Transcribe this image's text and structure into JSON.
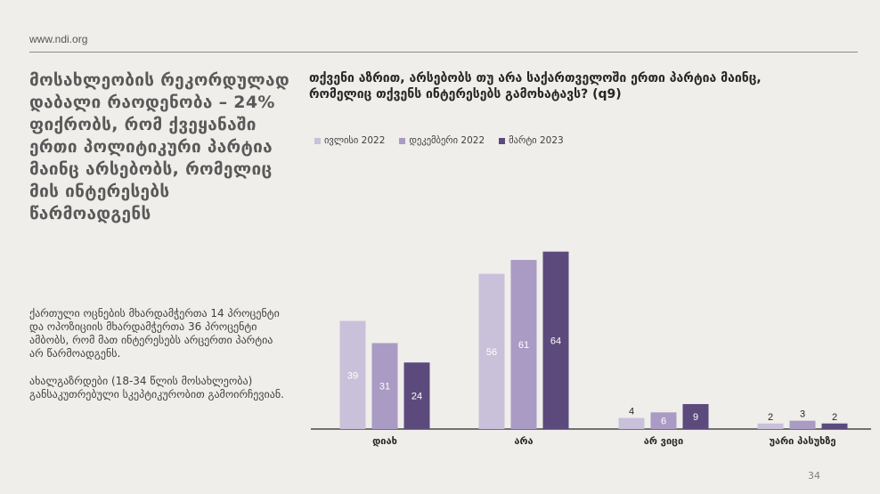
{
  "site": "www.ndi.org",
  "headline": "მოსახლეობის რეკორდულად დაბალი რაოდენობა – 24% ფიქრობს, რომ ქვეყანაში ერთი პოლიტიკური პარტია მაინც არსებობს, რომელიც მის ინტერესებს წარმოადგენს",
  "paragraphs": [
    "ქართული ოცნების მხარდამჭერთა 14 პროცენტი და ოპოზიციის მხარდამჭერთა 36 პროცენტი ამბობს, რომ მათ ინტერესებს არცერთი პარტია არ წარმოადგენს.",
    "ახალგაზრდები (18-34 წლის მოსახლეობა) განსაკუთრებული სკეპტიკურობით გამოირჩევიან."
  ],
  "page_number": "34",
  "chart_data": {
    "type": "bar",
    "title": "თქვენი აზრით, არსებობს თუ არა საქართველოში ერთი პარტია მაინც, რომელიც თქვენს ინტერესებს გამოხატავს? (q9)",
    "categories": [
      "დიახ",
      "არა",
      "არ ვიცი",
      "უარი პასუხზე"
    ],
    "series": [
      {
        "name": "ივლისი 2022",
        "values": [
          39,
          56,
          4,
          2
        ],
        "color": "#c9c1d9"
      },
      {
        "name": "დეკემბერი 2022",
        "values": [
          31,
          61,
          6,
          3
        ],
        "color": "#a99bc4"
      },
      {
        "name": "მარტი 2023",
        "values": [
          24,
          64,
          9,
          2
        ],
        "color": "#5c4a7d"
      }
    ],
    "ylim": [
      0,
      70
    ],
    "legend_position": "top-left",
    "grid": false
  }
}
